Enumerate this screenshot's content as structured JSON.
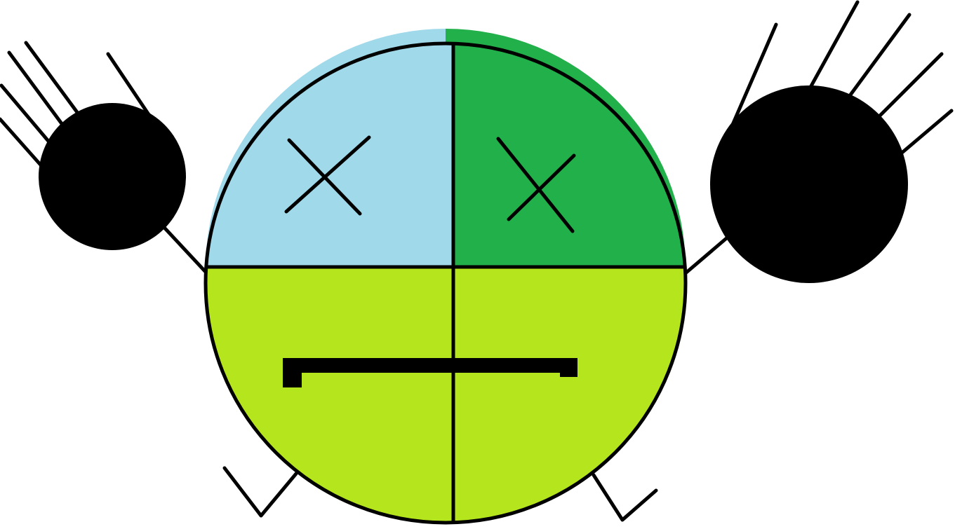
{
  "drawing": {
    "subject": "cartoon-face-character",
    "colors": {
      "background": "#ffffff",
      "outline": "#000000",
      "top_left_quadrant": "#9fd9ea",
      "top_right_quadrant": "#22b04b",
      "bottom_half": "#b5e61d",
      "hands": "#000000"
    },
    "features": {
      "eyes": "x-eyes",
      "mouth": "flat-line",
      "hands": "two-round-black-hands",
      "fingers_left": 5,
      "fingers_right": 5,
      "feet": 2
    }
  }
}
